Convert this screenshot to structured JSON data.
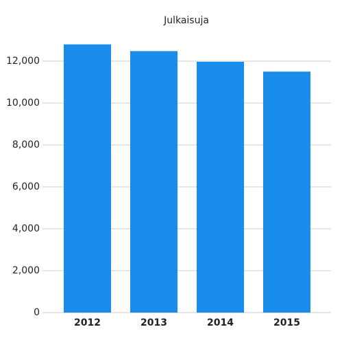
{
  "chart_data": {
    "type": "bar",
    "title": "Julkaisuja",
    "categories": [
      "2012",
      "2013",
      "2014",
      "2015"
    ],
    "values": [
      12800,
      12480,
      11970,
      11500
    ],
    "color": "#1a8ceb",
    "ylim": [
      0,
      13000
    ],
    "yticks": [
      0,
      {
        "value": 2000,
        "label": "2,000"
      },
      {
        "value": 4000,
        "label": "4,000"
      },
      {
        "value": 6000,
        "label": "6,000"
      },
      {
        "value": 8000,
        "label": "8,000"
      },
      {
        "value": 10000,
        "label": "10,000"
      },
      {
        "value": 12000,
        "label": "12,000"
      }
    ],
    "grid": true
  }
}
